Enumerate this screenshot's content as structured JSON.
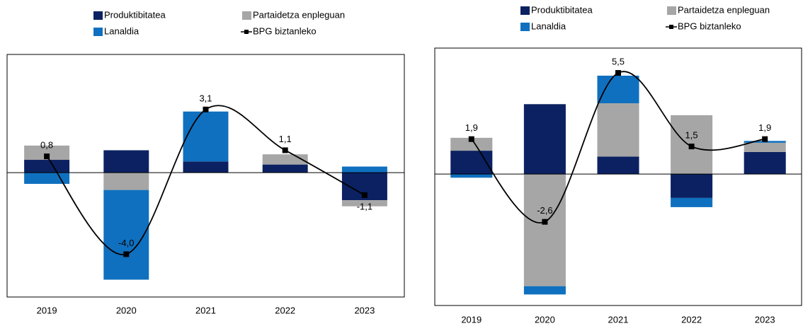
{
  "chart_data": [
    {
      "type": "bar",
      "categories": [
        "2019",
        "2020",
        "2021",
        "2022",
        "2023"
      ],
      "ylim": [
        -6.1,
        5.8
      ],
      "series": [
        {
          "name": "Produktibitatea",
          "color": "#0b2161",
          "values": [
            0.63,
            1.1,
            0.55,
            0.4,
            -1.35
          ]
        },
        {
          "name": "Partaidetza enpleguan",
          "color": "#a6a6a6",
          "values": [
            0.7,
            -0.85,
            0,
            0.5,
            -0.3
          ]
        },
        {
          "name": "Lanaldia",
          "color": "#0f70bf",
          "values": [
            -0.55,
            -4.4,
            2.45,
            0,
            0.3
          ]
        },
        {
          "name": "BPG biztanleko",
          "color": "#000000",
          "type": "line",
          "values": [
            0.8,
            -4.0,
            3.1,
            1.1,
            -1.1
          ],
          "value_labels": [
            "0,8",
            "-4,0",
            "3,1",
            "1,1",
            "-1,1"
          ]
        }
      ]
    },
    {
      "type": "bar",
      "categories": [
        "2019",
        "2020",
        "2021",
        "2022",
        "2023"
      ],
      "ylim": [
        -7.15,
        6.85
      ],
      "series": [
        {
          "name": "Produktibitatea",
          "color": "#0b2161",
          "values": [
            1.27,
            3.8,
            0.95,
            -1.3,
            1.2
          ]
        },
        {
          "name": "Partaidetza enpleguan",
          "color": "#a6a6a6",
          "values": [
            0.7,
            -6.1,
            2.9,
            3.2,
            0.5
          ]
        },
        {
          "name": "Lanaldia",
          "color": "#0f70bf",
          "values": [
            -0.2,
            -0.45,
            1.5,
            -0.5,
            0.1
          ]
        },
        {
          "name": "BPG biztanleko",
          "color": "#000000",
          "type": "line",
          "values": [
            1.9,
            -2.6,
            5.5,
            1.5,
            1.9
          ],
          "value_labels": [
            "1,9",
            "-2,6",
            "5,5",
            "1,5",
            "1,9"
          ]
        }
      ]
    }
  ]
}
